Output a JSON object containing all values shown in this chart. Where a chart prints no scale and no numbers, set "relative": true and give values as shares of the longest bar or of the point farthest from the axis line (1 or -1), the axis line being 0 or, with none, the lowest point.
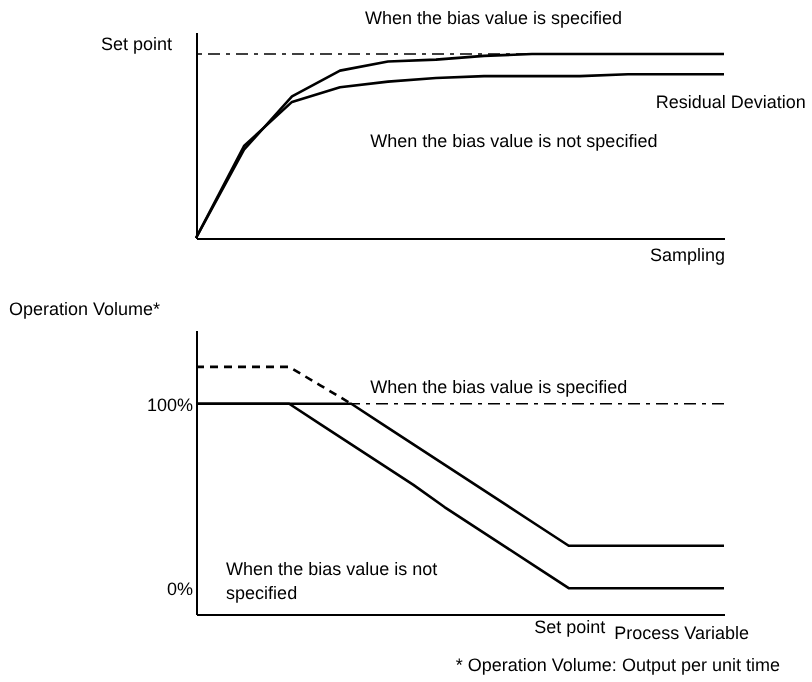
{
  "chart_data": [
    {
      "type": "line",
      "relative": true,
      "xlabel": "Sampling",
      "categories": [
        null,
        null,
        null,
        null,
        null,
        null,
        null,
        null,
        null,
        null,
        null,
        null
      ],
      "series": [
        {
          "name": "When the bias value is specified",
          "color": "#000000",
          "values": [
            0,
            0.48,
            0.77,
            0.91,
            0.96,
            0.97,
            0.99,
            1.0,
            1.0,
            1.0,
            1.0,
            1.0
          ]
        },
        {
          "name": "When the bias value is not specified",
          "color": "#000000",
          "values": [
            0,
            0.5,
            0.74,
            0.82,
            0.85,
            0.87,
            0.88,
            0.88,
            0.88,
            0.89,
            0.89,
            0.89
          ]
        }
      ],
      "ref_lines": [
        {
          "axis": "y",
          "value": 1,
          "label": "Set point",
          "line_style": "dashed",
          "color": "#000000"
        }
      ],
      "annotations": [
        "Residual Deviation"
      ]
    },
    {
      "type": "line",
      "xlabel": "Process Variable",
      "ylabel": "Operation Volume*",
      "categories": [
        null,
        null,
        null,
        null,
        null,
        null,
        null,
        null,
        null,
        null,
        null,
        null,
        "Set point",
        null,
        null,
        null,
        null,
        null
      ],
      "ylim": [
        -14,
        140
      ],
      "yticks": [
        {
          "value": 0,
          "label": "0%"
        },
        {
          "value": 100,
          "label": "100%"
        }
      ],
      "series": [
        {
          "name": "When the bias value is specified",
          "color": "#000000",
          "values": [
            100,
            100,
            100,
            100,
            100,
            100,
            89,
            78,
            67,
            56,
            45,
            34,
            23,
            23,
            23,
            23,
            23,
            23
          ]
        },
        {
          "name": "When the bias value is not specified",
          "color": "#000000",
          "values": [
            100,
            100,
            100,
            100,
            89,
            78,
            67,
            56,
            44,
            33,
            22,
            11,
            0,
            0,
            0,
            0,
            0,
            0
          ]
        },
        {
          "color": "#000000",
          "line_style": "dashed",
          "values": [
            120,
            120,
            120,
            120,
            110,
            100,
            null,
            null,
            null,
            null,
            null,
            null,
            null,
            null,
            null,
            null,
            null,
            null
          ]
        }
      ],
      "ref_lines": [
        {
          "axis": "y",
          "value": 100,
          "line_style": "dashed",
          "color": "#000000"
        }
      ],
      "annotations": [
        "* Operation Volume: Output per unit time"
      ]
    }
  ]
}
